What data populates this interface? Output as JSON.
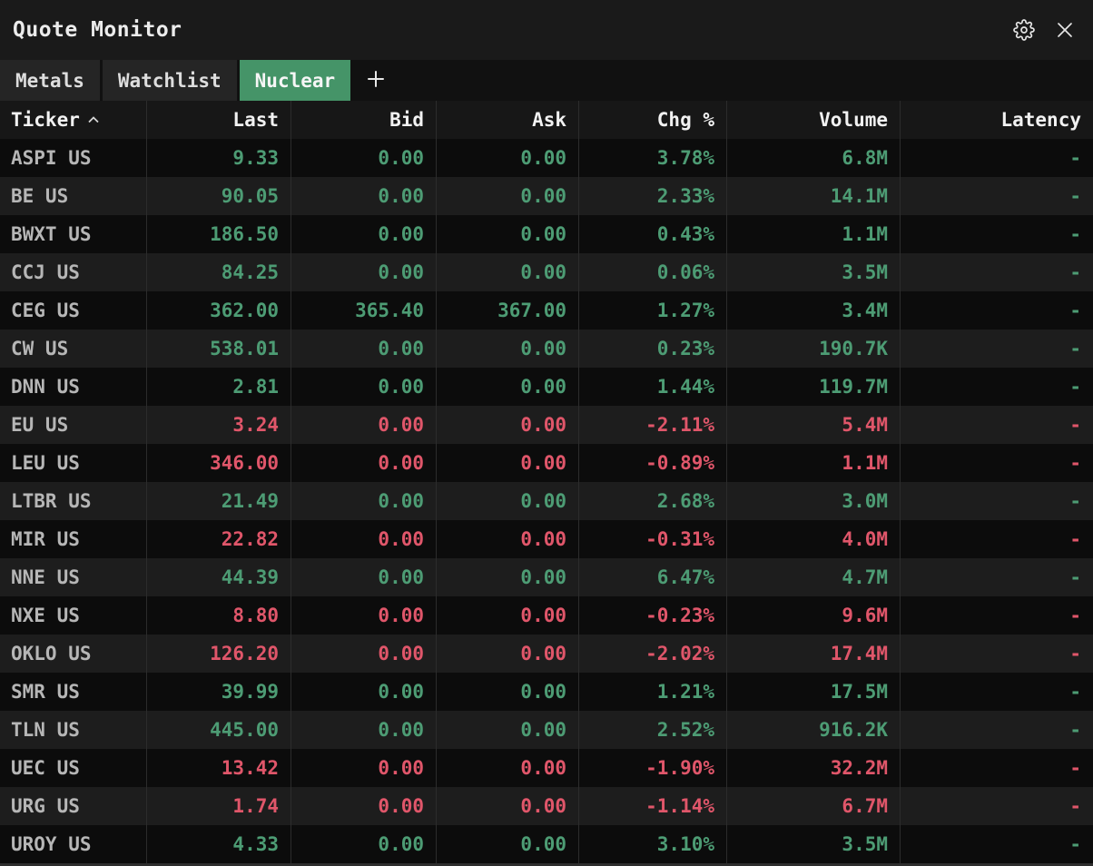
{
  "window": {
    "title": "Quote Monitor"
  },
  "titlebar": {
    "icons": [
      {
        "name": "gear-icon"
      },
      {
        "name": "close-icon"
      }
    ]
  },
  "tabs": {
    "items": [
      {
        "label": "Metals",
        "active": false
      },
      {
        "label": "Watchlist",
        "active": false
      },
      {
        "label": "Nuclear",
        "active": true
      }
    ],
    "add_label": "+"
  },
  "table": {
    "columns": [
      "Ticker",
      "Last",
      "Bid",
      "Ask",
      "Chg %",
      "Volume",
      "Latency"
    ],
    "sort": {
      "column": "Ticker",
      "direction": "asc"
    },
    "rows": [
      {
        "ticker": "ASPI US",
        "last": "9.33",
        "bid": "0.00",
        "ask": "0.00",
        "chg": "3.78%",
        "volume": "6.8M",
        "latency": "-",
        "trend": "up"
      },
      {
        "ticker": "BE US",
        "last": "90.05",
        "bid": "0.00",
        "ask": "0.00",
        "chg": "2.33%",
        "volume": "14.1M",
        "latency": "-",
        "trend": "up"
      },
      {
        "ticker": "BWXT US",
        "last": "186.50",
        "bid": "0.00",
        "ask": "0.00",
        "chg": "0.43%",
        "volume": "1.1M",
        "latency": "-",
        "trend": "up"
      },
      {
        "ticker": "CCJ US",
        "last": "84.25",
        "bid": "0.00",
        "ask": "0.00",
        "chg": "0.06%",
        "volume": "3.5M",
        "latency": "-",
        "trend": "up"
      },
      {
        "ticker": "CEG US",
        "last": "362.00",
        "bid": "365.40",
        "ask": "367.00",
        "chg": "1.27%",
        "volume": "3.4M",
        "latency": "-",
        "trend": "up"
      },
      {
        "ticker": "CW US",
        "last": "538.01",
        "bid": "0.00",
        "ask": "0.00",
        "chg": "0.23%",
        "volume": "190.7K",
        "latency": "-",
        "trend": "up"
      },
      {
        "ticker": "DNN US",
        "last": "2.81",
        "bid": "0.00",
        "ask": "0.00",
        "chg": "1.44%",
        "volume": "119.7M",
        "latency": "-",
        "trend": "up"
      },
      {
        "ticker": "EU US",
        "last": "3.24",
        "bid": "0.00",
        "ask": "0.00",
        "chg": "-2.11%",
        "volume": "5.4M",
        "latency": "-",
        "trend": "down"
      },
      {
        "ticker": "LEU US",
        "last": "346.00",
        "bid": "0.00",
        "ask": "0.00",
        "chg": "-0.89%",
        "volume": "1.1M",
        "latency": "-",
        "trend": "down"
      },
      {
        "ticker": "LTBR US",
        "last": "21.49",
        "bid": "0.00",
        "ask": "0.00",
        "chg": "2.68%",
        "volume": "3.0M",
        "latency": "-",
        "trend": "up"
      },
      {
        "ticker": "MIR US",
        "last": "22.82",
        "bid": "0.00",
        "ask": "0.00",
        "chg": "-0.31%",
        "volume": "4.0M",
        "latency": "-",
        "trend": "down"
      },
      {
        "ticker": "NNE US",
        "last": "44.39",
        "bid": "0.00",
        "ask": "0.00",
        "chg": "6.47%",
        "volume": "4.7M",
        "latency": "-",
        "trend": "up"
      },
      {
        "ticker": "NXE US",
        "last": "8.80",
        "bid": "0.00",
        "ask": "0.00",
        "chg": "-0.23%",
        "volume": "9.6M",
        "latency": "-",
        "trend": "down"
      },
      {
        "ticker": "OKLO US",
        "last": "126.20",
        "bid": "0.00",
        "ask": "0.00",
        "chg": "-2.02%",
        "volume": "17.4M",
        "latency": "-",
        "trend": "down"
      },
      {
        "ticker": "SMR US",
        "last": "39.99",
        "bid": "0.00",
        "ask": "0.00",
        "chg": "1.21%",
        "volume": "17.5M",
        "latency": "-",
        "trend": "up"
      },
      {
        "ticker": "TLN US",
        "last": "445.00",
        "bid": "0.00",
        "ask": "0.00",
        "chg": "2.52%",
        "volume": "916.2K",
        "latency": "-",
        "trend": "up"
      },
      {
        "ticker": "UEC US",
        "last": "13.42",
        "bid": "0.00",
        "ask": "0.00",
        "chg": "-1.90%",
        "volume": "32.2M",
        "latency": "-",
        "trend": "down"
      },
      {
        "ticker": "URG US",
        "last": "1.74",
        "bid": "0.00",
        "ask": "0.00",
        "chg": "-1.14%",
        "volume": "6.7M",
        "latency": "-",
        "trend": "down"
      },
      {
        "ticker": "UROY US",
        "last": "4.33",
        "bid": "0.00",
        "ask": "0.00",
        "chg": "3.10%",
        "volume": "3.5M",
        "latency": "-",
        "trend": "up"
      }
    ]
  },
  "colors": {
    "up": "#4d9c74",
    "down": "#e0566a",
    "tab_active_bg": "#459468"
  }
}
